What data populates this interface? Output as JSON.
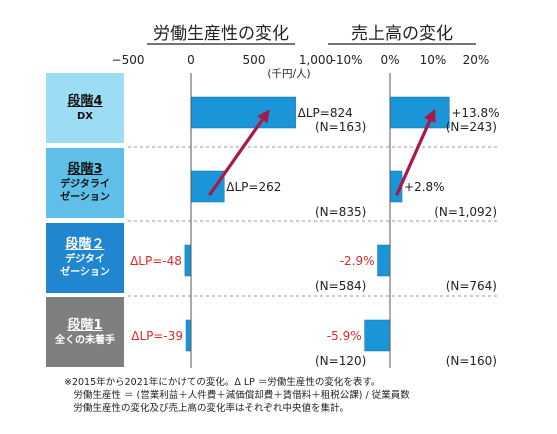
{
  "colors": {
    "stage1_bg": "#7f7f7f",
    "stage2_bg": "#1f86cf",
    "stage3_bg": "#5fbfe8",
    "stage4_bg": "#9ddcf5",
    "bar": "#1a96d8",
    "bar_edge": "#0f6fa8",
    "arrow": "#a8194a",
    "negative_text": "#e02828",
    "text": "#222222",
    "dashed_line": "#999999"
  },
  "chart_data": [
    {
      "type": "bar",
      "orientation": "horizontal",
      "title": "労働生産性の変化",
      "unit_label": "(千円/人)",
      "xlim": [
        -500,
        1000
      ],
      "ticks": [
        -500,
        0,
        500,
        1000
      ],
      "tick_labels": [
        "−500",
        "0",
        "500",
        "1,000"
      ],
      "categories": [
        "段階4 DX",
        "段階3 デジタライゼーション",
        "段階2 デジタイゼーション",
        "段階1 全くの未着手"
      ],
      "values": [
        824,
        262,
        -48,
        -39
      ],
      "value_labels": [
        "ΔLP=824",
        "ΔLP=262",
        "ΔLP=-48",
        "ΔLP=-39"
      ],
      "n_labels": [
        "(N=163)",
        "(N=835)",
        "(N=584)",
        "(N=120)"
      ],
      "arrow": {
        "from_category": "段階3 デジタライゼーション",
        "to_category": "段階4 DX"
      }
    },
    {
      "type": "bar",
      "orientation": "horizontal",
      "title": "売上高の変化",
      "xlim": [
        -10,
        20
      ],
      "ticks": [
        -10,
        0,
        10,
        20
      ],
      "tick_labels": [
        "-10%",
        "0%",
        "10%",
        "20%"
      ],
      "categories": [
        "段階4 DX",
        "段階3 デジタライゼーション",
        "段階2 デジタイゼーション",
        "段階1 全くの未着手"
      ],
      "values": [
        13.8,
        2.8,
        -2.9,
        -5.9
      ],
      "value_labels": [
        "+13.8%",
        "+2.8%",
        "-2.9%",
        "-5.9%"
      ],
      "n_labels": [
        "(N=243)",
        "(N=1,092)",
        "(N=764)",
        "(N=160)"
      ],
      "arrow": {
        "from_category": "段階3 デジタライゼーション",
        "to_category": "段階4 DX"
      }
    }
  ],
  "stages": [
    {
      "title": "段階4",
      "lines": [
        "DX"
      ],
      "color_key": "stage4_bg",
      "text_color": "#111111"
    },
    {
      "title": "段階3",
      "lines": [
        "デジタライ",
        "ゼーション"
      ],
      "color_key": "stage3_bg",
      "text_color": "#111111"
    },
    {
      "title": "段階２",
      "lines": [
        "デジタイ",
        "ゼーション"
      ],
      "color_key": "stage2_bg",
      "text_color": "#ffffff"
    },
    {
      "title": "段階1",
      "lines": [
        "全くの未着手"
      ],
      "color_key": "stage1_bg",
      "text_color": "#ffffff"
    }
  ],
  "notes": [
    "※2015年から2021年にかけての変化。Δ LP ＝労働生産性の変化を表す。",
    "　労働生産性 ＝ (営業利益＋人件費＋減価償却費＋賃借料＋租税公課) / 従業員数",
    "　労働生産性の変化及び売上高の変化率はそれぞれ中央値を集計。"
  ]
}
